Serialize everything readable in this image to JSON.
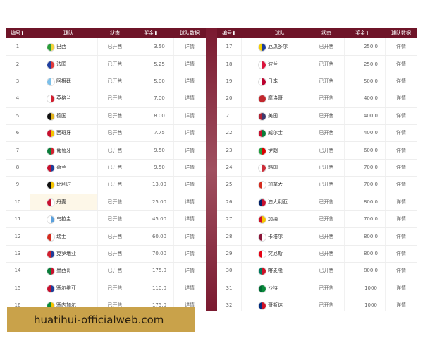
{
  "tables": [
    {
      "headers": [
        "编号⬆",
        "球队",
        "状态",
        "奖金⬆",
        "球队数据"
      ],
      "rows": [
        [
          "1",
          "巴西",
          "已开售",
          "3.50",
          "详情"
        ],
        [
          "2",
          "法国",
          "已开售",
          "5.25",
          "详情"
        ],
        [
          "3",
          "阿根廷",
          "已开售",
          "5.00",
          "详情"
        ],
        [
          "4",
          "英格兰",
          "已开售",
          "7.00",
          "详情"
        ],
        [
          "5",
          "德国",
          "已开售",
          "8.00",
          "详情"
        ],
        [
          "6",
          "西班牙",
          "已开售",
          "7.75",
          "详情"
        ],
        [
          "7",
          "葡萄牙",
          "已开售",
          "9.50",
          "详情"
        ],
        [
          "8",
          "荷兰",
          "已开售",
          "9.50",
          "详情"
        ],
        [
          "9",
          "比利时",
          "已开售",
          "13.00",
          "详情"
        ],
        [
          "10",
          "丹麦",
          "已开售",
          "25.00",
          "详情"
        ],
        [
          "11",
          "乌拉圭",
          "已开售",
          "45.00",
          "详情"
        ],
        [
          "12",
          "瑞士",
          "已开售",
          "60.00",
          "详情"
        ],
        [
          "13",
          "克罗地亚",
          "已开售",
          "70.00",
          "详情"
        ],
        [
          "14",
          "墨西哥",
          "已开售",
          "175.0",
          "详情"
        ],
        [
          "15",
          "塞尔维亚",
          "已开售",
          "110.0",
          "详情"
        ],
        [
          "16",
          "塞内加尔",
          "已开售",
          "175.0",
          "详情"
        ]
      ]
    },
    {
      "headers": [
        "编号⬆",
        "球队",
        "状态",
        "奖金⬆",
        "球队数据"
      ],
      "rows": [
        [
          "17",
          "厄瓜多尔",
          "已开售",
          "250.0",
          "详情"
        ],
        [
          "18",
          "波兰",
          "已开售",
          "250.0",
          "详情"
        ],
        [
          "19",
          "日本",
          "已开售",
          "500.0",
          "详情"
        ],
        [
          "20",
          "摩洛哥",
          "已开售",
          "400.0",
          "详情"
        ],
        [
          "21",
          "美国",
          "已开售",
          "400.0",
          "详情"
        ],
        [
          "22",
          "威尔士",
          "已开售",
          "400.0",
          "详情"
        ],
        [
          "23",
          "伊朗",
          "已开售",
          "600.0",
          "详情"
        ],
        [
          "24",
          "韩国",
          "已开售",
          "700.0",
          "详情"
        ],
        [
          "25",
          "加拿大",
          "已开售",
          "700.0",
          "详情"
        ],
        [
          "26",
          "澳大利亚",
          "已开售",
          "800.0",
          "详情"
        ],
        [
          "27",
          "加纳",
          "已开售",
          "700.0",
          "详情"
        ],
        [
          "28",
          "卡塔尔",
          "已开售",
          "800.0",
          "详情"
        ],
        [
          "29",
          "突尼斯",
          "已开售",
          "800.0",
          "详情"
        ],
        [
          "30",
          "喀麦隆",
          "已开售",
          "800.0",
          "详情"
        ],
        [
          "31",
          "沙特",
          "已开售",
          "1000",
          "详情"
        ],
        [
          "32",
          "哥斯达",
          "已开售",
          "1000",
          "详情"
        ]
      ]
    }
  ],
  "banner": {
    "text": "huatihui-officialweb.com"
  }
}
